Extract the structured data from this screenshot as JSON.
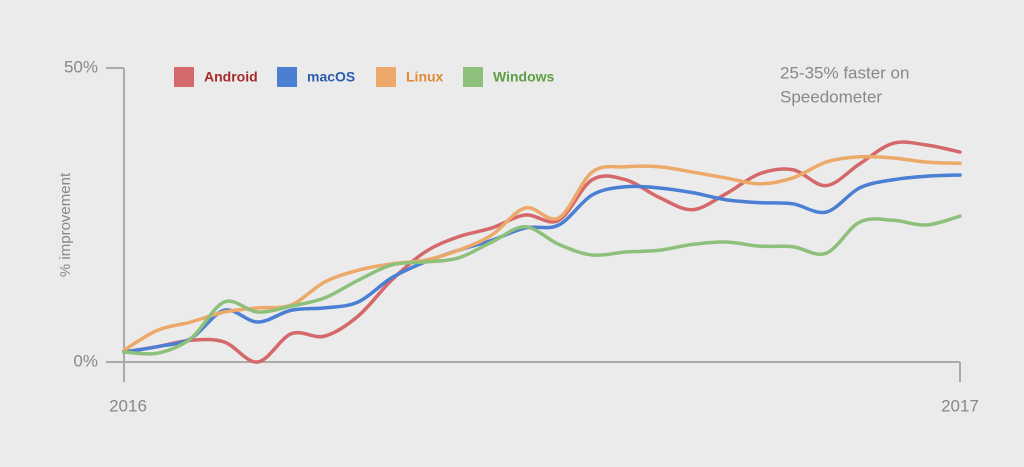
{
  "chart_data": {
    "type": "line",
    "annotation": [
      "25-35% faster on",
      "Speedometer"
    ],
    "y_label": "% improvement",
    "categories": [
      "2016",
      null,
      null,
      null,
      null,
      null,
      null,
      null,
      null,
      null,
      null,
      null,
      null,
      null,
      null,
      null,
      null,
      null,
      null,
      null,
      null,
      null,
      null,
      null,
      null,
      "2017"
    ],
    "series": [
      {
        "name": "Android",
        "color": "#d4686a",
        "label_color": "#a82a2a",
        "values": [
          1.7,
          2.6,
          3.7,
          3.4,
          0,
          4.8,
          4.4,
          7.8,
          13.9,
          18.7,
          21.3,
          22.8,
          25,
          24.1,
          31,
          31,
          28,
          25.9,
          28.6,
          32,
          32.7,
          30,
          33.7,
          37.2,
          36.9,
          35.7
        ]
      },
      {
        "name": "macOS",
        "color": "#4a7fd4",
        "label_color": "#2a5cb0",
        "values": [
          1.7,
          2.6,
          4,
          8.8,
          6.8,
          8.8,
          9.2,
          10.2,
          14.3,
          17,
          19,
          20.7,
          22.8,
          23.3,
          28.4,
          29.8,
          29.6,
          28.8,
          27.6,
          27.1,
          26.9,
          25.5,
          29.6,
          31,
          31.6,
          31.8
        ]
      },
      {
        "name": "Linux",
        "color": "#eda96a",
        "label_color": "#e08a32",
        "values": [
          2,
          5.4,
          6.8,
          8.5,
          9.2,
          9.7,
          13.6,
          15.6,
          16.7,
          17.3,
          19,
          21.6,
          26.2,
          24.5,
          32.3,
          33.2,
          33.2,
          32.3,
          31.3,
          30.3,
          31.3,
          34,
          34.9,
          34.7,
          34,
          33.8
        ]
      },
      {
        "name": "Windows",
        "color": "#8dc07a",
        "label_color": "#5e9e44",
        "values": [
          1.7,
          1.5,
          4,
          10.2,
          8.5,
          9.5,
          10.9,
          13.9,
          16.5,
          17,
          17.7,
          20.4,
          23,
          20,
          18.2,
          18.7,
          19,
          20,
          20.4,
          19.7,
          19.6,
          18.5,
          23.8,
          24.1,
          23.3,
          24.8
        ]
      }
    ],
    "ylim": [
      0,
      50
    ],
    "yticks": [
      {
        "value": 0,
        "label": "0%"
      },
      {
        "value": 50,
        "label": "50%"
      }
    ]
  }
}
